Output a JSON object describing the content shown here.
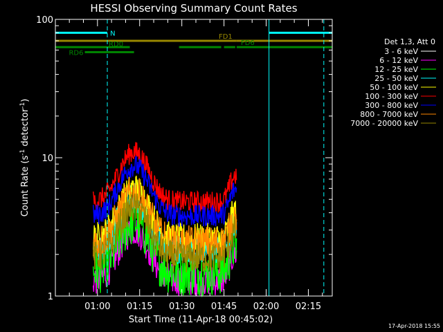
{
  "chart_data": {
    "type": "line",
    "title": "HESSI Observing Summary Count Rates",
    "xlabel": "Start Time (11-Apr-18 00:45:02)",
    "ylabel": "Count Rate (s^-1 detector^-1)",
    "ylabel_main": "Count Rate (s",
    "ylabel_sup1": "-1",
    "ylabel_mid": " detector",
    "ylabel_sup2": "-1",
    "ylabel_end": ")",
    "y_scale": "log",
    "ylim": [
      1,
      100
    ],
    "xlim_minutes": [
      45.03,
      143.5
    ],
    "y_ticks": [
      {
        "value": 1,
        "label": "1"
      },
      {
        "value": 10,
        "label": "10"
      },
      {
        "value": 100,
        "label": "100"
      }
    ],
    "x_ticks": [
      {
        "minutes": 60,
        "label": "01:00"
      },
      {
        "minutes": 75,
        "label": "01:15"
      },
      {
        "minutes": 90,
        "label": "01:30"
      },
      {
        "minutes": 105,
        "label": "01:45"
      },
      {
        "minutes": 120,
        "label": "02:00"
      },
      {
        "minutes": 135,
        "label": "02:15"
      }
    ],
    "legend_title": "Det 1,3, Att 0",
    "legend_placement": "right",
    "series": [
      {
        "name": "3 - 6 keV",
        "color": "#000000",
        "level": 1.15,
        "amp": 1.3
      },
      {
        "name": "6 - 12 keV",
        "color": "#ff00ff",
        "level": 1.3,
        "amp": 1.3
      },
      {
        "name": "12 - 25 keV",
        "color": "#00ff00",
        "level": 1.5,
        "amp": 1.5
      },
      {
        "name": "25 - 50 keV",
        "color": "#00ffff",
        "level": 2.2,
        "amp": 1.3
      },
      {
        "name": "50 - 100 keV",
        "color": "#ffff00",
        "level": 2.6,
        "amp": 1.3
      },
      {
        "name": "100 - 300 keV",
        "color": "#ff0000",
        "level": 4.8,
        "amp": 1.2
      },
      {
        "name": "300 - 800 keV",
        "color": "#0000ff",
        "level": 3.8,
        "amp": 1.2
      },
      {
        "name": "800 - 7000 keV",
        "color": "#ff8800",
        "level": 2.4,
        "amp": 1.35
      },
      {
        "name": "7000 - 20000 keV",
        "color": "#998800",
        "level": 1.9,
        "amp": 1.3
      }
    ],
    "data_interval_minutes": [
      58.5,
      109.5
    ],
    "cyan_solid_lines_minutes": [
      45.03,
      121
    ],
    "cyan_dashed_lines_minutes": [
      63.5,
      140.5
    ],
    "flags": [
      {
        "label": "N",
        "color": "#00ffff",
        "y": 80,
        "segments": [
          [
            45.03,
            63.5
          ],
          [
            121,
            143.5
          ]
        ]
      },
      {
        "label": "FD1",
        "color": "#998800",
        "y": 70,
        "segments": [
          [
            45.03,
            109.5
          ],
          [
            109.5,
            143.5
          ]
        ]
      },
      {
        "label": "FD6",
        "color": "#008800",
        "y": 63,
        "segments": [
          [
            109.5,
            143.5
          ]
        ]
      },
      {
        "label": "RD0",
        "color": "#008800",
        "y": 63,
        "segments": [
          [
            45.03,
            71.5
          ],
          [
            89,
            104
          ],
          [
            105,
            109
          ]
        ]
      },
      {
        "label": "RD6",
        "color": "#008800",
        "y": 58,
        "segments": [
          [
            55.5,
            73
          ]
        ]
      }
    ],
    "timestamp": "17-Apr-2018 15:55"
  }
}
